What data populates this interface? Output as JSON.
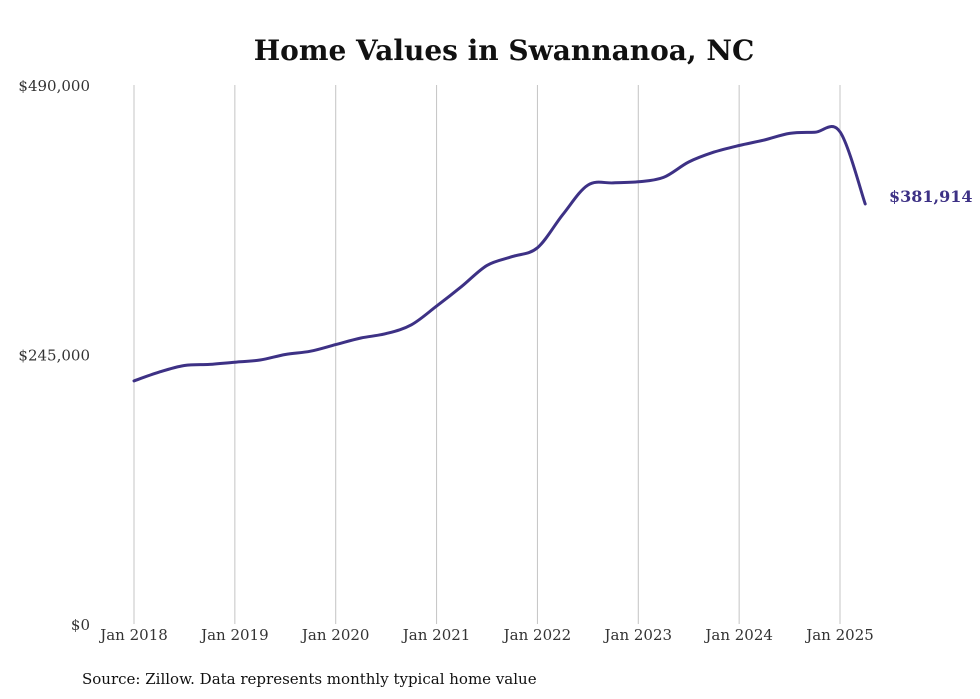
{
  "chart_data": {
    "type": "line",
    "title": "Home Values in Swannanoa, NC",
    "xlabel": "",
    "ylabel": "",
    "ylim": [
      0,
      490000
    ],
    "yticks": [
      0,
      245000,
      490000
    ],
    "ytick_labels": [
      "$0",
      "$245,000",
      "$490,000"
    ],
    "xticks": [
      "2018-01",
      "2019-01",
      "2020-01",
      "2021-01",
      "2022-01",
      "2023-01",
      "2024-01",
      "2025-01"
    ],
    "xtick_labels": [
      "Jan 2018",
      "Jan 2019",
      "Jan 2020",
      "Jan 2021",
      "Jan 2022",
      "Jan 2023",
      "Jan 2024",
      "Jan 2025"
    ],
    "grid": "vertical",
    "line_color": "#3d3185",
    "end_label": "$381,914",
    "series": [
      {
        "x": [
          "2018-01",
          "2018-04",
          "2018-07",
          "2018-10",
          "2019-01",
          "2019-04",
          "2019-07",
          "2019-10",
          "2020-01",
          "2020-04",
          "2020-07",
          "2020-10",
          "2021-01",
          "2021-04",
          "2021-07",
          "2021-10",
          "2022-01",
          "2022-04",
          "2022-07",
          "2022-10",
          "2023-01",
          "2023-04",
          "2023-07",
          "2023-10",
          "2024-01",
          "2024-04",
          "2024-07",
          "2024-10",
          "2025-01",
          "2025-04"
        ],
        "values": [
          221000,
          229000,
          235000,
          236000,
          238000,
          240000,
          245000,
          248000,
          254000,
          260000,
          264000,
          272000,
          289000,
          307000,
          326000,
          334000,
          342000,
          372000,
          399000,
          401000,
          402000,
          406000,
          420000,
          429000,
          435000,
          440000,
          446000,
          447000,
          447500,
          381914
        ]
      }
    ],
    "source": "Source: Zillow. Data represents monthly typical home value"
  }
}
